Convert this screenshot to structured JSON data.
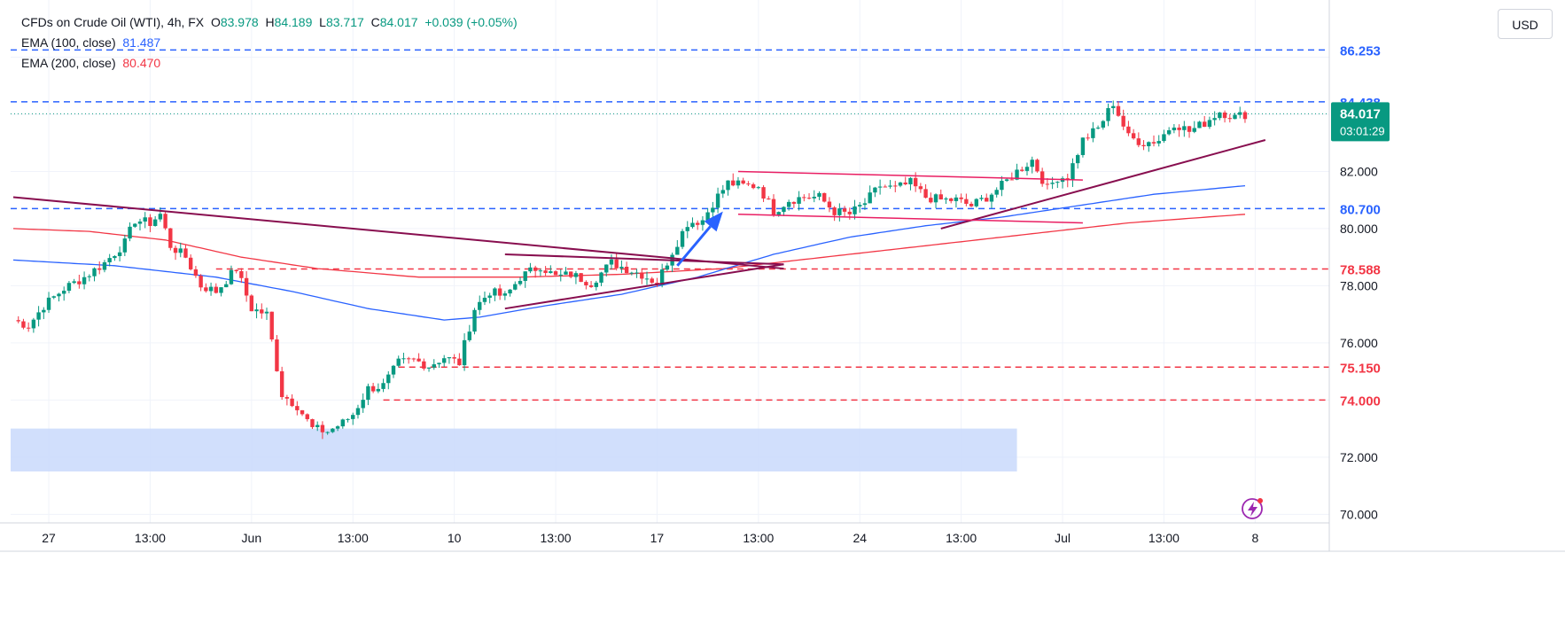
{
  "legend": {
    "symbol": "CFDs on Crude Oil (WTI), 4h, FX",
    "open_label": "O",
    "open": "83.978",
    "high_label": "H",
    "high": "84.189",
    "low_label": "L",
    "low": "83.717",
    "close_label": "C",
    "close": "84.017",
    "change": "+0.039 (+0.05%)",
    "ema100_label": "EMA (100, close)",
    "ema100_value": "81.487",
    "ema200_label": "EMA (200, close)",
    "ema200_value": "80.470"
  },
  "currency": "USD",
  "colors": {
    "up": "#089981",
    "down": "#f23645",
    "ema100": "#2962ff",
    "ema200": "#f23645",
    "blue_level": "#2962ff",
    "red_level": "#f23645",
    "trendline": "#880e4f",
    "channel": "#e91e63",
    "zone": "#c9d9fb"
  },
  "chart_data": {
    "type": "candlestick",
    "y_axis": {
      "min": 69.7,
      "max": 88.0,
      "ticks": [
        "70.000",
        "72.000",
        "74.000",
        "76.000",
        "78.000",
        "80.000",
        "82.000"
      ],
      "tick_values": [
        70,
        72,
        74,
        76,
        78,
        80,
        82
      ]
    },
    "x_axis": {
      "labels": [
        "27",
        "13:00",
        "Jun",
        "13:00",
        "10",
        "13:00",
        "17",
        "13:00",
        "24",
        "13:00",
        "Jul",
        "13:00",
        "8"
      ],
      "label_index": [
        7,
        27,
        47,
        67,
        87,
        107,
        127,
        147,
        167,
        187,
        207,
        227,
        245
      ]
    },
    "price_labels": [
      {
        "text": "86.253",
        "value": 86.253,
        "kind": "blue"
      },
      {
        "text": "84.438",
        "value": 84.438,
        "kind": "blue"
      },
      {
        "text": "80.700",
        "value": 80.7,
        "kind": "blue"
      },
      {
        "text": "78.588",
        "value": 78.588,
        "kind": "red"
      },
      {
        "text": "75.150",
        "value": 75.15,
        "kind": "red"
      },
      {
        "text": "74.000",
        "value": 74.0,
        "kind": "red"
      }
    ],
    "last_price": {
      "text": "84.017",
      "countdown": "03:01:29",
      "value": 84.017
    },
    "support_zone": {
      "from_index": 0,
      "to_index": 198,
      "y_low": 71.5,
      "y_high": 73.0
    },
    "anchors": [
      [
        0,
        76.8
      ],
      [
        3,
        76.6
      ],
      [
        6,
        77.3
      ],
      [
        10,
        77.9
      ],
      [
        14,
        78.3
      ],
      [
        18,
        78.8
      ],
      [
        22,
        79.5
      ],
      [
        24,
        80.3
      ],
      [
        27,
        80.2
      ],
      [
        29,
        80.5
      ],
      [
        31,
        79.4
      ],
      [
        34,
        79.0
      ],
      [
        37,
        78.0
      ],
      [
        40,
        77.8
      ],
      [
        44,
        78.6
      ],
      [
        47,
        77.2
      ],
      [
        50,
        77.0
      ],
      [
        53,
        74.2
      ],
      [
        56,
        73.8
      ],
      [
        59,
        73.0
      ],
      [
        62,
        72.9
      ],
      [
        65,
        73.2
      ],
      [
        67,
        73.5
      ],
      [
        70,
        74.4
      ],
      [
        73,
        74.5
      ],
      [
        76,
        75.3
      ],
      [
        79,
        75.4
      ],
      [
        82,
        75.2
      ],
      [
        85,
        75.5
      ],
      [
        88,
        75.3
      ],
      [
        91,
        77.2
      ],
      [
        94,
        77.8
      ],
      [
        97,
        77.6
      ],
      [
        100,
        78.3
      ],
      [
        104,
        78.7
      ],
      [
        107,
        78.3
      ],
      [
        110,
        78.4
      ],
      [
        114,
        78.1
      ],
      [
        118,
        78.8
      ],
      [
        121,
        78.6
      ],
      [
        124,
        78.4
      ],
      [
        127,
        78.1
      ],
      [
        130,
        79.2
      ],
      [
        133,
        80.2
      ],
      [
        136,
        80.3
      ],
      [
        138,
        80.9
      ],
      [
        141,
        81.6
      ],
      [
        144,
        81.5
      ],
      [
        147,
        81.5
      ],
      [
        150,
        80.6
      ],
      [
        153,
        81.0
      ],
      [
        156,
        81.1
      ],
      [
        159,
        81.1
      ],
      [
        162,
        80.6
      ],
      [
        165,
        80.5
      ],
      [
        168,
        80.9
      ],
      [
        171,
        81.5
      ],
      [
        174,
        81.4
      ],
      [
        177,
        81.6
      ],
      [
        180,
        81.1
      ],
      [
        183,
        81.0
      ],
      [
        186,
        81.0
      ],
      [
        189,
        80.8
      ],
      [
        192,
        81.1
      ],
      [
        195,
        81.5
      ],
      [
        198,
        82.0
      ],
      [
        201,
        82.4
      ],
      [
        204,
        81.4
      ],
      [
        206,
        81.8
      ],
      [
        208,
        81.8
      ],
      [
        211,
        83.1
      ],
      [
        214,
        83.5
      ],
      [
        217,
        84.4
      ],
      [
        220,
        83.2
      ],
      [
        223,
        83.0
      ],
      [
        226,
        83.1
      ],
      [
        229,
        83.7
      ],
      [
        232,
        83.4
      ],
      [
        235,
        83.7
      ],
      [
        238,
        84.1
      ],
      [
        241,
        83.9
      ],
      [
        243,
        84.0
      ]
    ],
    "ema100": [
      [
        0,
        78.9
      ],
      [
        20,
        78.7
      ],
      [
        40,
        78.3
      ],
      [
        55,
        77.8
      ],
      [
        70,
        77.2
      ],
      [
        85,
        76.8
      ],
      [
        92,
        76.9
      ],
      [
        105,
        77.3
      ],
      [
        120,
        77.7
      ],
      [
        135,
        78.3
      ],
      [
        150,
        79.1
      ],
      [
        165,
        79.7
      ],
      [
        180,
        80.1
      ],
      [
        195,
        80.4
      ],
      [
        210,
        80.8
      ],
      [
        225,
        81.2
      ],
      [
        243,
        81.5
      ]
    ],
    "ema200": [
      [
        0,
        80.0
      ],
      [
        15,
        79.9
      ],
      [
        30,
        79.6
      ],
      [
        45,
        79.0
      ],
      [
        60,
        78.6
      ],
      [
        80,
        78.3
      ],
      [
        100,
        78.3
      ],
      [
        120,
        78.4
      ],
      [
        140,
        78.6
      ],
      [
        160,
        79.0
      ],
      [
        180,
        79.4
      ],
      [
        200,
        79.8
      ],
      [
        220,
        80.2
      ],
      [
        243,
        80.5
      ]
    ],
    "trendlines": [
      {
        "kind": "dark",
        "from": [
          0,
          81.1
        ],
        "to": [
          152,
          78.6
        ]
      },
      {
        "kind": "dark",
        "from": [
          97,
          79.1
        ],
        "to": [
          152,
          78.75
        ]
      },
      {
        "kind": "dark",
        "from": [
          97,
          77.2
        ],
        "to": [
          152,
          78.75
        ]
      },
      {
        "kind": "dark",
        "from": [
          183,
          80.0
        ],
        "to": [
          247,
          83.1
        ]
      },
      {
        "kind": "channel",
        "from": [
          143,
          82.0
        ],
        "to": [
          211,
          81.7
        ]
      },
      {
        "kind": "channel",
        "from": [
          143,
          80.5
        ],
        "to": [
          211,
          80.2
        ]
      }
    ],
    "arrow": {
      "from": [
        131,
        78.7
      ],
      "to": [
        140,
        80.6
      ]
    }
  }
}
